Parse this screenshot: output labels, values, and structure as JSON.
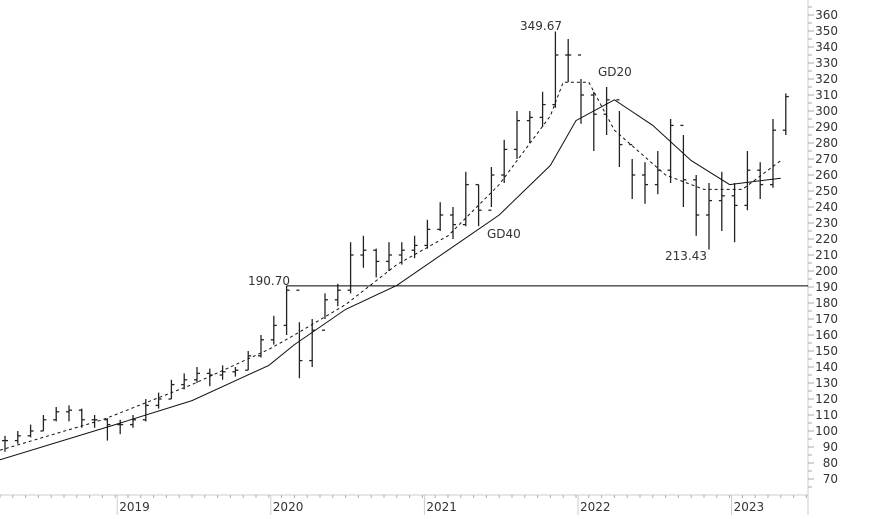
{
  "chart_data": {
    "type": "ohlc",
    "ylim": [
      65,
      365
    ],
    "y_ticks": [
      70,
      80,
      90,
      100,
      110,
      120,
      130,
      140,
      150,
      160,
      170,
      180,
      190,
      200,
      210,
      220,
      230,
      240,
      250,
      260,
      270,
      280,
      290,
      300,
      310,
      320,
      330,
      340,
      350,
      360
    ],
    "x_ticks": [
      "2019",
      "2020",
      "2021",
      "2022",
      "2023"
    ],
    "grid": false,
    "months": [
      "2018-04",
      "2018-05",
      "2018-06",
      "2018-07",
      "2018-08",
      "2018-09",
      "2018-10",
      "2018-11",
      "2018-12",
      "2019-01",
      "2019-02",
      "2019-03",
      "2019-04",
      "2019-05",
      "2019-06",
      "2019-07",
      "2019-08",
      "2019-09",
      "2019-10",
      "2019-11",
      "2019-12",
      "2020-01",
      "2020-02",
      "2020-03",
      "2020-04",
      "2020-05",
      "2020-06",
      "2020-07",
      "2020-08",
      "2020-09",
      "2020-10",
      "2020-11",
      "2020-12",
      "2021-01",
      "2021-02",
      "2021-03",
      "2021-04",
      "2021-05",
      "2021-06",
      "2021-07",
      "2021-08",
      "2021-09",
      "2021-10",
      "2021-11",
      "2021-12",
      "2022-01",
      "2022-02",
      "2022-03",
      "2022-04",
      "2022-05",
      "2022-06",
      "2022-07",
      "2022-08",
      "2022-09",
      "2022-10",
      "2022-11",
      "2022-12",
      "2023-01",
      "2023-02",
      "2023-03",
      "2023-04",
      "2023-05"
    ],
    "high": [
      97,
      100,
      104,
      110,
      115,
      116,
      114,
      110,
      108,
      107,
      110,
      120,
      124,
      132,
      136,
      140,
      139,
      141,
      140,
      150,
      160,
      172,
      190.7,
      168,
      170,
      186,
      192,
      218,
      222,
      214,
      218,
      218,
      222,
      232,
      243,
      240,
      262,
      254,
      265,
      282,
      300,
      300,
      312,
      349.67,
      345,
      320,
      312,
      315,
      300,
      270,
      268,
      275,
      295,
      285,
      260,
      255,
      262,
      255,
      275,
      268,
      295,
      311
    ],
    "low": [
      87,
      92,
      96,
      100,
      106,
      106,
      102,
      102,
      94,
      98,
      102,
      106,
      114,
      120,
      126,
      130,
      128,
      132,
      134,
      138,
      146,
      154,
      160,
      133,
      140,
      170,
      178,
      186,
      202,
      196,
      200,
      204,
      208,
      214,
      225,
      220,
      228,
      228,
      240,
      255,
      270,
      280,
      290,
      302,
      318,
      292,
      275,
      285,
      265,
      245,
      242,
      248,
      255,
      240,
      222,
      213.43,
      225,
      218,
      238,
      245,
      252,
      285
    ],
    "close": [
      94,
      97,
      100,
      107,
      112,
      113,
      107,
      107,
      104,
      104,
      107,
      116,
      120,
      129,
      132,
      136,
      135,
      137,
      138,
      147,
      157,
      166,
      188,
      144,
      163,
      182,
      188,
      210,
      213,
      206,
      210,
      213,
      216,
      226,
      235,
      229,
      254,
      238,
      260,
      276,
      294,
      296,
      304,
      335,
      335,
      310,
      298,
      307,
      279,
      260,
      254,
      263,
      291,
      257,
      235,
      244,
      247,
      241,
      263,
      254,
      288,
      309
    ],
    "series": [
      {
        "name": "GD20",
        "style": "dashed",
        "points": [
          [
            "2018-04",
            88
          ],
          [
            "2018-12",
            107
          ],
          [
            "2019-07",
            129
          ],
          [
            "2020-01",
            151
          ],
          [
            "2020-03",
            160
          ],
          [
            "2020-07",
            179
          ],
          [
            "2020-11",
            204
          ],
          [
            "2021-03",
            222
          ],
          [
            "2021-07",
            254
          ],
          [
            "2021-11",
            297
          ],
          [
            "2021-12",
            318
          ],
          [
            "2022-02",
            318
          ],
          [
            "2022-04",
            288
          ],
          [
            "2022-08",
            260
          ],
          [
            "2022-11",
            251
          ],
          [
            "2023-02",
            251
          ],
          [
            "2023-05",
            269
          ]
        ]
      },
      {
        "name": "GD40",
        "style": "solid",
        "points": [
          [
            "2018-04",
            82
          ],
          [
            "2019-01",
            104
          ],
          [
            "2019-07",
            119
          ],
          [
            "2020-01",
            141
          ],
          [
            "2020-03",
            154
          ],
          [
            "2020-07",
            176
          ],
          [
            "2020-11",
            191
          ],
          [
            "2021-03",
            213
          ],
          [
            "2021-07",
            235
          ],
          [
            "2021-11",
            266
          ],
          [
            "2022-01",
            294
          ],
          [
            "2022-04",
            307
          ],
          [
            "2022-07",
            291
          ],
          [
            "2022-10",
            269
          ],
          [
            "2023-01",
            254
          ],
          [
            "2023-05",
            258
          ]
        ]
      }
    ],
    "annotations": {
      "high_label": "349.67",
      "low_label": "213.43",
      "level_label": "190.70",
      "level_value": 190.7,
      "gd20_label": "GD20",
      "gd40_label": "GD40"
    }
  }
}
